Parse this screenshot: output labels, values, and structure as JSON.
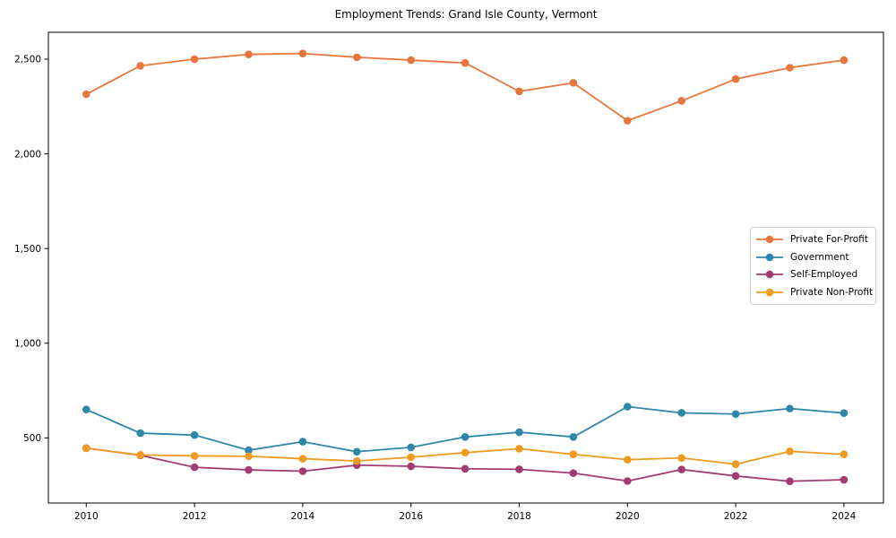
{
  "figure": {
    "background": "#ffffff",
    "axis_color": "#000000",
    "legend_border_color": "#cccccc"
  },
  "chart_data": {
    "type": "line",
    "title": "Employment Trends: Grand Isle County, Vermont",
    "xlabel": "",
    "ylabel": "",
    "grid": false,
    "legend_position": "center-right",
    "x": [
      2010,
      2011,
      2012,
      2013,
      2014,
      2015,
      2016,
      2017,
      2018,
      2019,
      2020,
      2021,
      2022,
      2023,
      2024
    ],
    "x_ticks": [
      2010,
      2012,
      2014,
      2016,
      2018,
      2020,
      2022,
      2024
    ],
    "x_tick_labels": [
      "2010",
      "2012",
      "2014",
      "2016",
      "2018",
      "2020",
      "2022",
      "2024"
    ],
    "y_ticks": [
      500,
      1000,
      1500,
      2000,
      2500
    ],
    "y_tick_labels": [
      "500",
      "1,000",
      "1,500",
      "2,000",
      "2,500"
    ],
    "xlim": [
      2009.3,
      2024.73
    ],
    "ylim": [
      156,
      2642
    ],
    "series": [
      {
        "name": "Private For-Profit",
        "color": "#E8763C",
        "values": [
          2315,
          2465,
          2500,
          2525,
          2530,
          2510,
          2495,
          2480,
          2330,
          2375,
          2175,
          2280,
          2395,
          2455,
          2495
        ]
      },
      {
        "name": "Government",
        "color": "#2E86A8",
        "values": [
          650,
          525,
          515,
          435,
          480,
          427,
          450,
          505,
          530,
          505,
          665,
          632,
          626,
          655,
          631
        ]
      },
      {
        "name": "Self-Employed",
        "color": "#A23B72",
        "values": [
          446,
          408,
          345,
          331,
          324,
          356,
          350,
          337,
          334,
          314,
          272,
          333,
          299,
          271,
          279
        ]
      },
      {
        "name": "Private Non-Profit",
        "color": "#EF9B20",
        "values": [
          445,
          410,
          405,
          403,
          390,
          378,
          398,
          422,
          443,
          413,
          385,
          394,
          361,
          429,
          413
        ]
      }
    ]
  }
}
